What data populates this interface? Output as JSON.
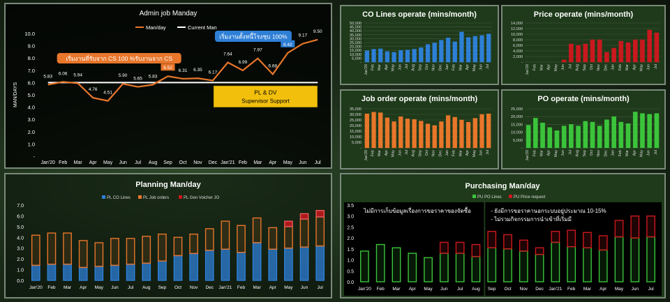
{
  "colors": {
    "orange": "#e8762b",
    "white": "#ffffff",
    "blue": "#2e7fd6",
    "red": "#c9181e",
    "green": "#3bc43b",
    "yellow": "#f2c00c"
  },
  "chart_data": [
    {
      "type": "line",
      "title": "Admin job Manday",
      "ylabel": "MAN/DAYS",
      "categories": [
        "Jan'20",
        "Feb",
        "Mar",
        "Apr",
        "May",
        "Jun",
        "Jul",
        "Aug",
        "Sep",
        "Oct",
        "Nov",
        "Dec",
        "Jan'21",
        "Feb",
        "Mar",
        "Apr",
        "May",
        "Jun",
        "Jul"
      ],
      "series": [
        {
          "name": "Man/day",
          "values": [
            5.83,
            6.06,
            5.94,
            4.76,
            4.51,
            5.9,
            5.65,
            5.83,
            6.52,
            6.31,
            6.35,
            6.17,
            7.64,
            6.99,
            7.97,
            6.68,
            8.42,
            9.17,
            9.5
          ]
        },
        {
          "name": "Current Man",
          "values": [
            6,
            6,
            6,
            6,
            6,
            6,
            6,
            6,
            6,
            6,
            6,
            6,
            6,
            6,
            6,
            6,
            6,
            6,
            6
          ]
        }
      ],
      "data_labels": [
        "5.83",
        "6.06",
        "5.94",
        "4.76",
        "4.51",
        "5.90",
        "5.65",
        "5.83",
        "6.52",
        "6.31",
        "6.35",
        "6.17",
        "7.64",
        "6.99",
        "7.97",
        "6.68",
        "8.42",
        "9.17",
        "9.50"
      ],
      "yticks": [
        "10.0",
        "9.0",
        "8.0",
        "7.0",
        "6.0",
        "5.0",
        "4.0",
        "3.0",
        "2.0",
        "1.0",
        "-"
      ],
      "ylim": [
        0,
        10
      ],
      "annotations": [
        "เริ่มงานที่รับจาก CS 100 %รับงานจาก CS",
        "เริ่มงานตั้งหนี้โรงชุบ 100%",
        "PL & DV",
        "Supervisor Support"
      ]
    },
    {
      "type": "bar",
      "title": "CO Lines operate (mins/month)",
      "color": "#2e7fd6",
      "categories": [
        "Jan'20",
        "Feb",
        "Mar",
        "Apr",
        "May",
        "Jun",
        "Jul",
        "Aug",
        "Sep",
        "Oct",
        "Nov",
        "Dec",
        "Jan",
        "Feb",
        "Mar",
        "Apr",
        "May",
        "Jun",
        "Jul"
      ],
      "values": [
        14500,
        16500,
        17000,
        13500,
        12500,
        15000,
        15500,
        16500,
        18500,
        22500,
        24500,
        28000,
        31000,
        26000,
        38500,
        31500,
        33000,
        34000,
        36000
      ],
      "yticks": [
        "50,000",
        "45,000",
        "40,000",
        "35,000",
        "30,000",
        "25,000",
        "20,000",
        "15,000",
        "10,000",
        "5,000",
        "-"
      ],
      "ylim": [
        0,
        50000
      ]
    },
    {
      "type": "bar",
      "title": "Price operate (mins/month)",
      "color": "#c9181e",
      "categories": [
        "Jan'20",
        "Feb",
        "Mar",
        "Apr",
        "May",
        "Jun",
        "Jul",
        "Aug",
        "Sep",
        "Oct",
        "Nov",
        "Dec",
        "Jan",
        "Feb",
        "Mar",
        "Apr",
        "May",
        "Jun",
        "Jul"
      ],
      "values": [
        0,
        0,
        0,
        0,
        0,
        800,
        6500,
        6000,
        6500,
        8000,
        8000,
        3500,
        5000,
        7500,
        7000,
        8000,
        8000,
        11500,
        10500
      ],
      "yticks": [
        "14,000",
        "12,000",
        "10,000",
        "8,000",
        "6,000",
        "4,000",
        "2,000",
        "-"
      ],
      "ylim": [
        0,
        14000
      ]
    },
    {
      "type": "bar",
      "title": "Job order operate (mins/month)",
      "color": "#e8762b",
      "categories": [
        "Jan'20",
        "Feb",
        "Mar",
        "Apr",
        "May",
        "Jun",
        "Jul",
        "Aug",
        "Sep",
        "Oct",
        "Nov",
        "Dec",
        "Jan",
        "Feb",
        "Mar",
        "Apr",
        "May",
        "Jun",
        "Jul"
      ],
      "values": [
        30500,
        32000,
        31500,
        27000,
        23500,
        28000,
        26000,
        25500,
        24000,
        21500,
        20000,
        23500,
        29000,
        27500,
        25000,
        23000,
        26500,
        30000,
        30500
      ],
      "yticks": [
        "35,000",
        "30,000",
        "25,000",
        "20,000",
        "15,000",
        "10,000",
        "5,000",
        "-"
      ],
      "ylim": [
        0,
        35000
      ]
    },
    {
      "type": "bar",
      "title": "PO operate (mins/month)",
      "color": "#3bc43b",
      "categories": [
        "Jan'20",
        "Feb",
        "Mar",
        "Apr",
        "May",
        "Jun",
        "Jul",
        "Aug",
        "Sep",
        "Oct",
        "Nov",
        "Dec",
        "Jan",
        "Feb",
        "Mar",
        "Apr",
        "May",
        "Jun",
        "Jul"
      ],
      "values": [
        14500,
        19000,
        16000,
        13000,
        11000,
        14000,
        15000,
        14000,
        17000,
        16500,
        14000,
        18000,
        20000,
        16500,
        15500,
        23000,
        22000,
        21500,
        22000
      ],
      "yticks": [
        "25,000",
        "20,000",
        "15,000",
        "10,000",
        "5,000",
        "-"
      ],
      "ylim": [
        0,
        25000
      ]
    },
    {
      "type": "bar",
      "title": "Planning Man/day",
      "stacked": true,
      "categories": [
        "Jan'20",
        "Feb",
        "Mar",
        "Apr",
        "May",
        "Jun",
        "Jul",
        "Aug",
        "Sep",
        "Oct",
        "Nov",
        "Dec",
        "Jan'21",
        "Feb",
        "Mar",
        "Apr",
        "May",
        "Jun",
        "Jul"
      ],
      "series": [
        {
          "name": "PL CO Lines",
          "values": [
            1.4,
            1.5,
            1.5,
            1.2,
            1.3,
            1.4,
            1.5,
            1.6,
            1.8,
            2.3,
            2.5,
            2.8,
            2.9,
            2.6,
            3.5,
            2.9,
            3.0,
            3.1,
            3.2
          ]
        },
        {
          "name": "PL Job orders",
          "values": [
            2.8,
            2.9,
            2.9,
            2.5,
            2.2,
            2.5,
            2.4,
            2.5,
            2.5,
            1.7,
            1.8,
            2.0,
            2.6,
            2.5,
            2.3,
            2.0,
            2.0,
            2.6,
            2.7
          ]
        },
        {
          "name": "PL Gen Voicher JO",
          "values": [
            0,
            0,
            0,
            0,
            0,
            0,
            0,
            0,
            0,
            0,
            0,
            0,
            0,
            0,
            0,
            0,
            0.5,
            0.5,
            0.6
          ]
        }
      ],
      "yticks": [
        "7.0",
        "6.0",
        "5.0",
        "4.0",
        "3.0",
        "2.0",
        "1.0",
        "0.0"
      ],
      "ylim": [
        0,
        7
      ]
    },
    {
      "type": "bar",
      "title": "Purchasing Man/day",
      "stacked": true,
      "categories": [
        "Jan'20",
        "Feb",
        "Mar",
        "Apr",
        "May",
        "Jun",
        "Jul",
        "Aug",
        "Sep",
        "Oct",
        "Nov",
        "Dec",
        "Jan'21",
        "Feb",
        "Mar",
        "Apr",
        "May",
        "Jun",
        "Jul"
      ],
      "series": [
        {
          "name": "PU PO Lines",
          "values": [
            1.4,
            1.7,
            1.55,
            1.3,
            1.1,
            1.3,
            1.3,
            1.15,
            1.55,
            1.5,
            1.4,
            1.25,
            1.8,
            1.6,
            1.55,
            1.45,
            2.05,
            2.0,
            2.05
          ]
        },
        {
          "name": "PU Price request",
          "values": [
            0,
            0,
            0,
            0,
            0,
            0.5,
            0.5,
            0.55,
            0.75,
            0.65,
            0.5,
            0.3,
            0.5,
            0.75,
            0.7,
            0.65,
            0.75,
            1.0,
            0.95
          ]
        }
      ],
      "yticks": [
        "3.5",
        "3.0",
        "2.5",
        "2.0",
        "1.5",
        "1.0",
        "0.5",
        "0.0"
      ],
      "ylim": [
        0,
        3.5
      ],
      "notes": [
        "ไม่มีการเก็บข้อมูลเรื่องการขอราคาของจัดซื้อ",
        "- ยังมีการขอราคานอกระบบอยู่ประมาณ 10-15%",
        "- ไม่รวมกิจกรรมการนำเข้าที่เริ่มมี"
      ]
    }
  ]
}
